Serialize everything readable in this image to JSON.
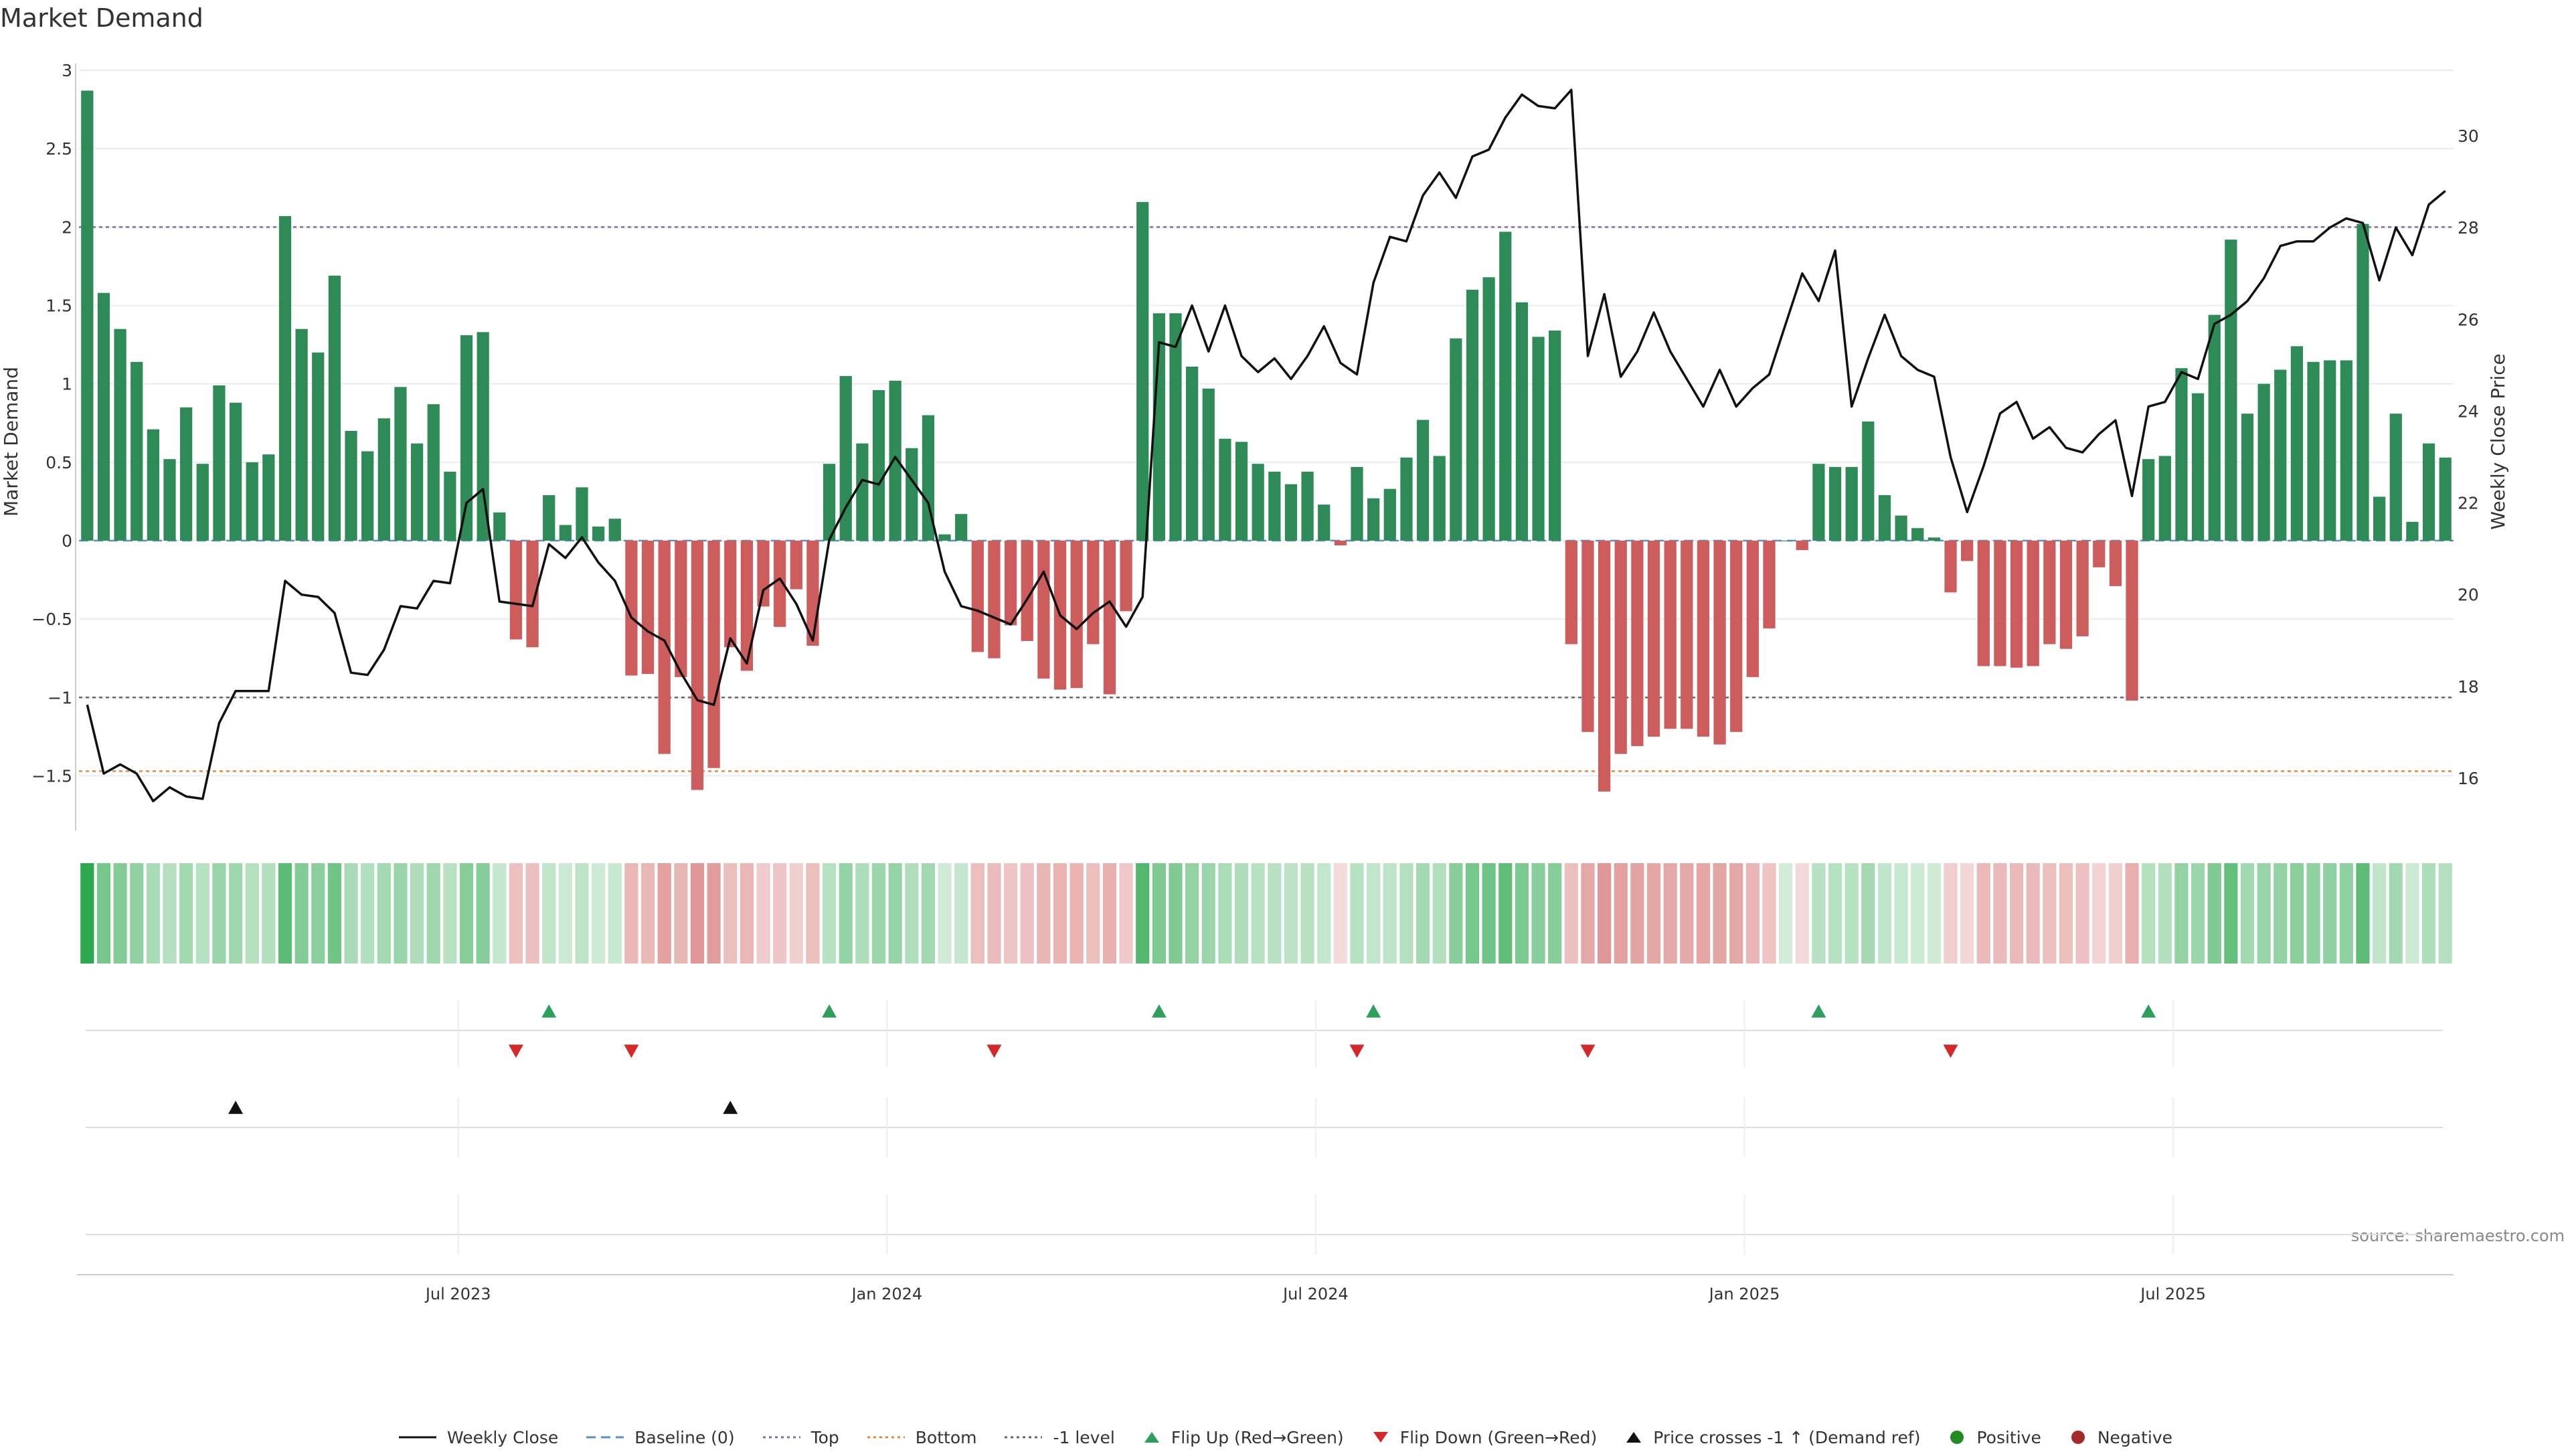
{
  "chart_data": {
    "type": "bar",
    "title": "Market Demand",
    "ylabel": "Market Demand",
    "y2label": "Weekly Close Price",
    "source": "source: sharemaestro.com",
    "ylim": [
      -1.85,
      3.0
    ],
    "y2lim": [
      14.5,
      31.5
    ],
    "yticks": [
      3,
      2.5,
      2,
      1.5,
      1,
      0.5,
      0,
      -0.5,
      -1,
      -1.5
    ],
    "ytick_labels": [
      "3",
      "2.5",
      "2",
      "1.5",
      "1",
      "0.5",
      "0",
      "−0.5",
      "−1",
      "−1.5"
    ],
    "y2ticks": [
      30,
      28,
      26,
      24,
      22,
      20,
      18,
      16
    ],
    "y2tick_labels": [
      "30",
      "28",
      "26",
      "24",
      "22",
      "20",
      "18",
      "16"
    ],
    "xticks": [
      {
        "index": 22.5,
        "label": "Jul 2023"
      },
      {
        "index": 48.5,
        "label": "Jan 2024"
      },
      {
        "index": 74.5,
        "label": "Jul 2024"
      },
      {
        "index": 100.5,
        "label": "Jan 2025"
      },
      {
        "index": 126.5,
        "label": "Jul 2025"
      }
    ],
    "reference_lines": [
      {
        "name": "Top",
        "value": 2.0,
        "color": "#7b6bb0"
      },
      {
        "name": "Bottom",
        "value": -1.47,
        "color": "#e08a3c"
      },
      {
        "name": "-1 level",
        "value": -1.0,
        "color": "#666666"
      },
      {
        "name": "Baseline (0)",
        "value": 0,
        "color": "#5a8fc7"
      }
    ],
    "demand": [
      2.87,
      1.58,
      1.35,
      1.14,
      0.71,
      0.52,
      0.85,
      0.49,
      0.99,
      0.88,
      0.5,
      0.55,
      2.07,
      1.35,
      1.2,
      1.69,
      0.7,
      0.57,
      0.78,
      0.98,
      0.62,
      0.87,
      0.44,
      1.31,
      1.33,
      0.18,
      -0.63,
      -0.68,
      0.29,
      0.1,
      0.34,
      0.09,
      0.14,
      -0.86,
      -0.85,
      -1.36,
      -0.87,
      -1.59,
      -1.45,
      -0.68,
      -0.83,
      -0.42,
      -0.55,
      -0.31,
      -0.67,
      0.49,
      1.05,
      0.62,
      0.96,
      1.02,
      0.59,
      0.8,
      0.04,
      0.17,
      -0.71,
      -0.75,
      -0.54,
      -0.64,
      -0.88,
      -0.95,
      -0.94,
      -0.66,
      -0.98,
      -0.45,
      2.16,
      1.45,
      1.45,
      1.11,
      0.97,
      0.65,
      0.63,
      0.49,
      0.44,
      0.36,
      0.44,
      0.23,
      -0.03,
      0.47,
      0.27,
      0.33,
      0.53,
      0.77,
      0.54,
      1.29,
      1.6,
      1.68,
      1.97,
      1.52,
      1.3,
      1.34,
      -0.66,
      -1.22,
      -1.6,
      -1.36,
      -1.31,
      -1.25,
      -1.2,
      -1.2,
      -1.25,
      -1.3,
      -1.22,
      -0.87,
      -0.56,
      0.0,
      -0.06,
      0.49,
      0.47,
      0.47,
      0.76,
      0.29,
      0.16,
      0.08,
      0.02,
      -0.33,
      -0.13,
      -0.8,
      -0.8,
      -0.81,
      -0.8,
      -0.66,
      -0.69,
      -0.61,
      -0.17,
      -0.29,
      -1.02,
      0.52,
      0.54,
      1.1,
      0.94,
      1.44,
      1.92,
      0.81,
      1.0,
      1.09,
      1.24,
      1.14,
      1.15,
      1.15,
      2.02,
      0.28,
      0.81,
      0.12,
      0.62,
      0.53
    ],
    "price": [
      17.6,
      16.1,
      16.3,
      16.1,
      15.5,
      15.8,
      15.6,
      15.55,
      17.2,
      17.9,
      17.9,
      17.9,
      20.3,
      20.0,
      19.95,
      19.6,
      18.3,
      18.25,
      18.8,
      19.75,
      19.7,
      20.3,
      20.25,
      22.0,
      22.3,
      19.85,
      19.8,
      19.75,
      21.1,
      20.8,
      21.25,
      20.7,
      20.3,
      19.5,
      19.2,
      19.0,
      18.3,
      17.7,
      17.6,
      19.05,
      18.5,
      20.1,
      20.35,
      19.8,
      19.0,
      21.2,
      21.9,
      22.5,
      22.4,
      23.0,
      22.5,
      22.0,
      20.5,
      19.75,
      19.65,
      19.5,
      19.35,
      19.9,
      20.5,
      19.55,
      19.25,
      19.6,
      19.85,
      19.3,
      19.95,
      25.5,
      25.4,
      26.3,
      25.3,
      26.3,
      25.2,
      24.85,
      25.15,
      24.7,
      25.2,
      25.85,
      25.05,
      24.8,
      26.8,
      27.8,
      27.7,
      28.7,
      29.2,
      28.65,
      29.55,
      29.7,
      30.4,
      30.9,
      30.65,
      30.6,
      31.0,
      25.2,
      26.55,
      24.75,
      25.3,
      26.15,
      25.3,
      24.7,
      24.1,
      24.9,
      24.1,
      24.5,
      24.8,
      25.9,
      27.0,
      26.4,
      27.5,
      24.1,
      25.15,
      26.1,
      25.2,
      24.9,
      24.75,
      23.0,
      21.8,
      22.8,
      23.95,
      24.2,
      23.4,
      23.65,
      23.2,
      23.1,
      23.5,
      23.8,
      22.15,
      24.1,
      24.2,
      24.85,
      24.7,
      25.9,
      26.1,
      26.4,
      26.9,
      27.6,
      27.7,
      27.7,
      28.0,
      28.2,
      28.1,
      26.85,
      28.0,
      27.4,
      28.5,
      28.8
    ],
    "flip_up_indices": [
      28,
      45,
      65,
      78,
      105,
      125
    ],
    "flip_down_indices": [
      26,
      33,
      55,
      77,
      91,
      113
    ],
    "price_cross_indices": [
      9,
      39
    ],
    "legend": [
      {
        "key": "weekly_close",
        "label": "Weekly Close"
      },
      {
        "key": "baseline",
        "label": "Baseline (0)"
      },
      {
        "key": "top",
        "label": "Top"
      },
      {
        "key": "bottom",
        "label": "Bottom"
      },
      {
        "key": "minus1",
        "label": "-1 level"
      },
      {
        "key": "flip_up",
        "label": "Flip Up (Red→Green)"
      },
      {
        "key": "flip_down",
        "label": "Flip Down (Green→Red)"
      },
      {
        "key": "cross",
        "label": "Price crosses -1 ↑ (Demand ref)"
      },
      {
        "key": "positive",
        "label": "Positive"
      },
      {
        "key": "negative",
        "label": "Negative"
      }
    ],
    "colors": {
      "positive": "#2e8b57",
      "negative": "#cd5c5c",
      "price": "#111111",
      "flip_up": "#2ca05a",
      "flip_down": "#d62828",
      "cross": "#111111",
      "positive_dot": "#228b22",
      "negative_dot": "#a52a2a"
    }
  }
}
